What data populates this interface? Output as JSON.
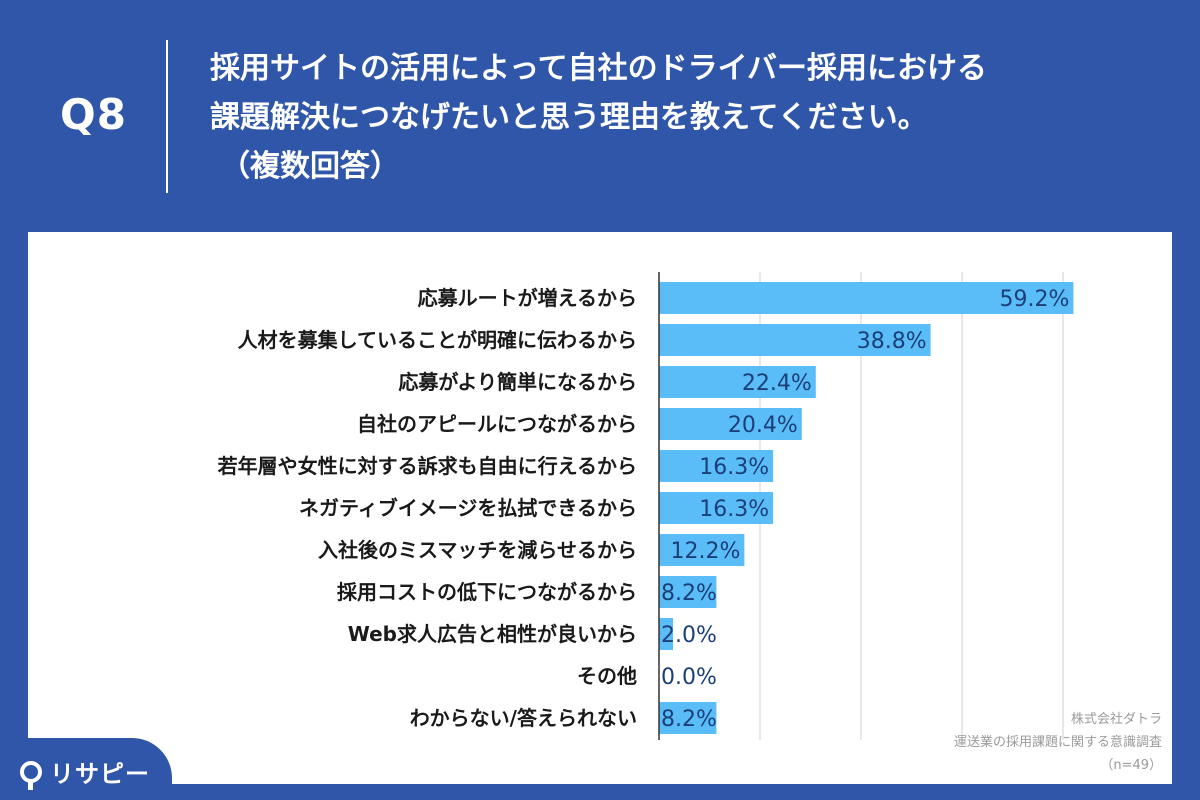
{
  "header": {
    "q_number": "Q8",
    "question_line1": "採用サイトの活用によって自社のドライバー採用における",
    "question_line2": "課題解決につなげたいと思う理由を教えてください。",
    "question_note": "（複数回答）"
  },
  "chart_data": {
    "type": "bar",
    "orientation": "horizontal",
    "categories": [
      "応募ルートが増えるから",
      "人材を募集していることが明確に伝わるから",
      "応募がより簡単になるから",
      "自社のアピールにつながるから",
      "若年層や女性に対する訴求も自由に行えるから",
      "ネガティブイメージを払拭できるから",
      "入社後のミスマッチを減らせるから",
      "採用コストの低下につながるから",
      "Web求人広告と相性が良いから",
      "その他",
      "わからない/答えられない"
    ],
    "values": [
      59.2,
      38.8,
      22.4,
      20.4,
      16.3,
      16.3,
      12.2,
      8.2,
      2.0,
      0.0,
      8.2
    ],
    "value_labels": [
      "59.2%",
      "38.8%",
      "22.4%",
      "20.4%",
      "16.3%",
      "16.3%",
      "12.2%",
      "8.2%",
      "2.0%",
      "0.0%",
      "8.2%"
    ],
    "xlim": [
      0,
      60
    ],
    "grid": true,
    "bar_color": "#5bbdf8",
    "value_color": "#1b3f78"
  },
  "source": {
    "company": "株式会社ダトラ",
    "survey": "運送業の採用課題に関する意識調査",
    "n": "（n=49）"
  },
  "logo": {
    "name": "リサピー",
    "icon": "pin-icon"
  },
  "colors": {
    "background": "#2f56a8",
    "panel": "#ffffff"
  }
}
